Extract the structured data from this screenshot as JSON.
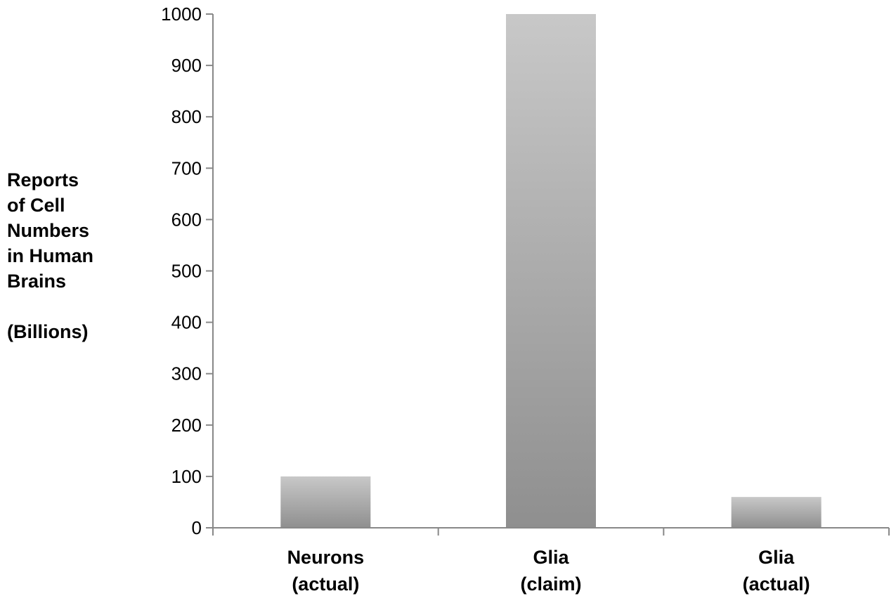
{
  "chart_data": {
    "type": "bar",
    "ylabel_lines": [
      "Reports",
      "of Cell",
      "Numbers",
      "in Human",
      "Brains"
    ],
    "ylabel_units": "(Billions)",
    "categories": [
      [
        "Neurons",
        "(actual)"
      ],
      [
        "Glia",
        "(claim)"
      ],
      [
        "Glia",
        "(actual)"
      ]
    ],
    "values": [
      100,
      1000,
      60
    ],
    "ylim": [
      0,
      1000
    ],
    "yticks": [
      0,
      100,
      200,
      300,
      400,
      500,
      600,
      700,
      800,
      900,
      1000
    ],
    "grid": false,
    "legend": "none",
    "bar_gradient": [
      "#c8c8c8",
      "#8f8f8f"
    ],
    "axis_color": "#888888"
  }
}
